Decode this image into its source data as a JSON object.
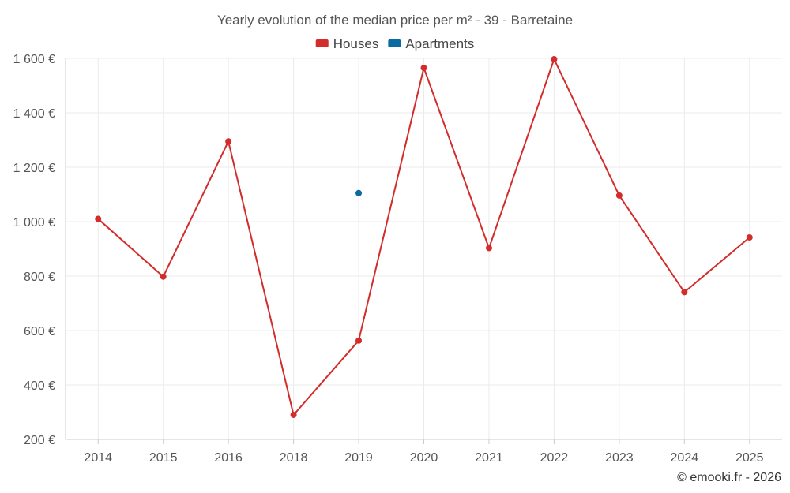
{
  "chart_data": {
    "type": "line",
    "title": "Yearly evolution of the median price per m² - 39 - Barretaine",
    "categories": [
      "2014",
      "2015",
      "2016",
      "2018",
      "2019",
      "2020",
      "2021",
      "2022",
      "2023",
      "2024",
      "2025"
    ],
    "series": [
      {
        "name": "Houses",
        "color": "#d42b2b",
        "values": [
          1010,
          798,
          1295,
          290,
          563,
          1565,
          903,
          1597,
          1096,
          741,
          942
        ]
      },
      {
        "name": "Apartments",
        "color": "#0b6aa2",
        "values": [
          null,
          null,
          null,
          null,
          1105,
          null,
          null,
          null,
          null,
          null,
          null
        ]
      }
    ],
    "ylim": [
      200,
      1600
    ],
    "yticks": [
      200,
      400,
      600,
      800,
      1000,
      1200,
      1400,
      1600
    ],
    "ytick_labels": [
      "200 €",
      "400 €",
      "600 €",
      "800 €",
      "1 000 €",
      "1 200 €",
      "1 400 €",
      "1 600 €"
    ],
    "xlabel": "",
    "ylabel": "",
    "grid": true,
    "legend_position": "top-center"
  },
  "credit": "© emooki.fr - 2026"
}
